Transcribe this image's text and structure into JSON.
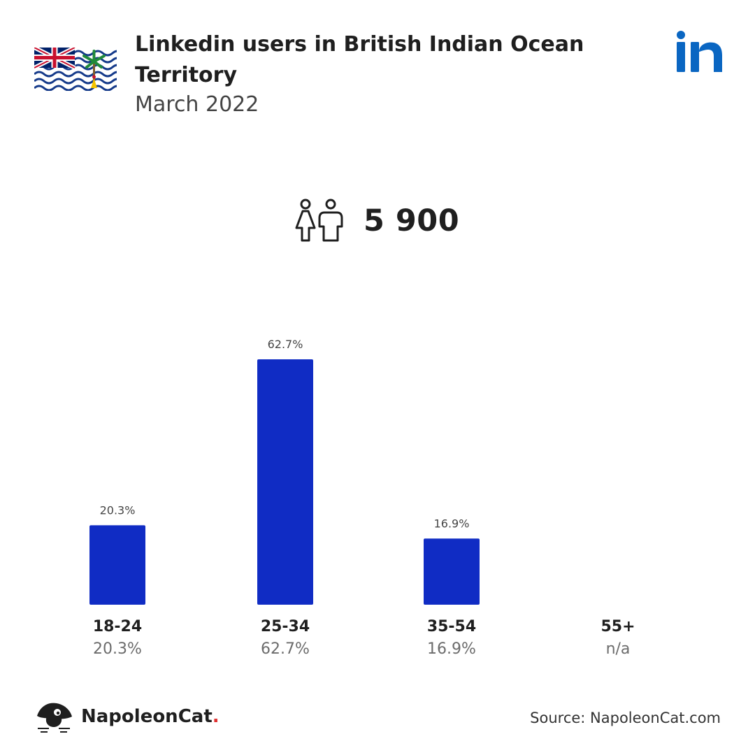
{
  "header": {
    "title": "Linkedin users in British Indian Ocean Territory",
    "subtitle": "March 2022"
  },
  "summary": {
    "total_users": "5 900"
  },
  "chart_data": {
    "type": "bar",
    "categories": [
      "18-24",
      "25-34",
      "35-54",
      "55+"
    ],
    "values": [
      20.3,
      62.7,
      16.9,
      null
    ],
    "value_labels": [
      "20.3%",
      "62.7%",
      "16.9%",
      "n/a"
    ],
    "bar_color": "#102cc4",
    "ylim": [
      0,
      62.7
    ],
    "grid": false,
    "legend": "none"
  },
  "footer": {
    "brand_name": "NapoleonCat",
    "brand_dot": ".",
    "source": "Source: NapoleonCat.com"
  },
  "colors": {
    "accent": "#102cc4",
    "linkedin": "#0a66c2",
    "brand_dot": "#e03131"
  },
  "icons": {
    "flag": "british-indian-ocean-territory-flag-icon",
    "social": "linkedin-icon",
    "people": "people-icon",
    "brand": "napoleoncat-icon"
  }
}
